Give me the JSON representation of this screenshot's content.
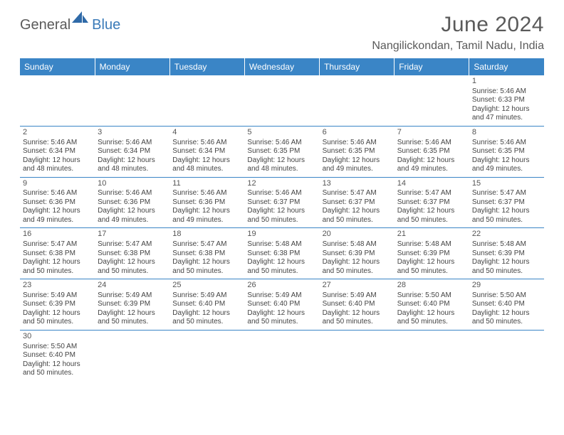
{
  "brand": {
    "part1": "General",
    "part2": "Blue"
  },
  "title": "June 2024",
  "location": "Nangilickondan, Tamil Nadu, India",
  "colors": {
    "header_bg": "#3a85c6",
    "header_text": "#ffffff",
    "cell_border": "#3a85c6",
    "text": "#444444",
    "title_text": "#5a5a5a"
  },
  "day_headers": [
    "Sunday",
    "Monday",
    "Tuesday",
    "Wednesday",
    "Thursday",
    "Friday",
    "Saturday"
  ],
  "weeks": [
    [
      null,
      null,
      null,
      null,
      null,
      null,
      {
        "n": "1",
        "sr": "5:46 AM",
        "ss": "6:33 PM",
        "dl": "12 hours and 47 minutes."
      }
    ],
    [
      {
        "n": "2",
        "sr": "5:46 AM",
        "ss": "6:34 PM",
        "dl": "12 hours and 48 minutes."
      },
      {
        "n": "3",
        "sr": "5:46 AM",
        "ss": "6:34 PM",
        "dl": "12 hours and 48 minutes."
      },
      {
        "n": "4",
        "sr": "5:46 AM",
        "ss": "6:34 PM",
        "dl": "12 hours and 48 minutes."
      },
      {
        "n": "5",
        "sr": "5:46 AM",
        "ss": "6:35 PM",
        "dl": "12 hours and 48 minutes."
      },
      {
        "n": "6",
        "sr": "5:46 AM",
        "ss": "6:35 PM",
        "dl": "12 hours and 49 minutes."
      },
      {
        "n": "7",
        "sr": "5:46 AM",
        "ss": "6:35 PM",
        "dl": "12 hours and 49 minutes."
      },
      {
        "n": "8",
        "sr": "5:46 AM",
        "ss": "6:35 PM",
        "dl": "12 hours and 49 minutes."
      }
    ],
    [
      {
        "n": "9",
        "sr": "5:46 AM",
        "ss": "6:36 PM",
        "dl": "12 hours and 49 minutes."
      },
      {
        "n": "10",
        "sr": "5:46 AM",
        "ss": "6:36 PM",
        "dl": "12 hours and 49 minutes."
      },
      {
        "n": "11",
        "sr": "5:46 AM",
        "ss": "6:36 PM",
        "dl": "12 hours and 49 minutes."
      },
      {
        "n": "12",
        "sr": "5:46 AM",
        "ss": "6:37 PM",
        "dl": "12 hours and 50 minutes."
      },
      {
        "n": "13",
        "sr": "5:47 AM",
        "ss": "6:37 PM",
        "dl": "12 hours and 50 minutes."
      },
      {
        "n": "14",
        "sr": "5:47 AM",
        "ss": "6:37 PM",
        "dl": "12 hours and 50 minutes."
      },
      {
        "n": "15",
        "sr": "5:47 AM",
        "ss": "6:37 PM",
        "dl": "12 hours and 50 minutes."
      }
    ],
    [
      {
        "n": "16",
        "sr": "5:47 AM",
        "ss": "6:38 PM",
        "dl": "12 hours and 50 minutes."
      },
      {
        "n": "17",
        "sr": "5:47 AM",
        "ss": "6:38 PM",
        "dl": "12 hours and 50 minutes."
      },
      {
        "n": "18",
        "sr": "5:47 AM",
        "ss": "6:38 PM",
        "dl": "12 hours and 50 minutes."
      },
      {
        "n": "19",
        "sr": "5:48 AM",
        "ss": "6:38 PM",
        "dl": "12 hours and 50 minutes."
      },
      {
        "n": "20",
        "sr": "5:48 AM",
        "ss": "6:39 PM",
        "dl": "12 hours and 50 minutes."
      },
      {
        "n": "21",
        "sr": "5:48 AM",
        "ss": "6:39 PM",
        "dl": "12 hours and 50 minutes."
      },
      {
        "n": "22",
        "sr": "5:48 AM",
        "ss": "6:39 PM",
        "dl": "12 hours and 50 minutes."
      }
    ],
    [
      {
        "n": "23",
        "sr": "5:49 AM",
        "ss": "6:39 PM",
        "dl": "12 hours and 50 minutes."
      },
      {
        "n": "24",
        "sr": "5:49 AM",
        "ss": "6:39 PM",
        "dl": "12 hours and 50 minutes."
      },
      {
        "n": "25",
        "sr": "5:49 AM",
        "ss": "6:40 PM",
        "dl": "12 hours and 50 minutes."
      },
      {
        "n": "26",
        "sr": "5:49 AM",
        "ss": "6:40 PM",
        "dl": "12 hours and 50 minutes."
      },
      {
        "n": "27",
        "sr": "5:49 AM",
        "ss": "6:40 PM",
        "dl": "12 hours and 50 minutes."
      },
      {
        "n": "28",
        "sr": "5:50 AM",
        "ss": "6:40 PM",
        "dl": "12 hours and 50 minutes."
      },
      {
        "n": "29",
        "sr": "5:50 AM",
        "ss": "6:40 PM",
        "dl": "12 hours and 50 minutes."
      }
    ],
    [
      {
        "n": "30",
        "sr": "5:50 AM",
        "ss": "6:40 PM",
        "dl": "12 hours and 50 minutes."
      },
      null,
      null,
      null,
      null,
      null,
      null
    ]
  ],
  "labels": {
    "sunrise": "Sunrise:",
    "sunset": "Sunset:",
    "daylight": "Daylight:"
  }
}
